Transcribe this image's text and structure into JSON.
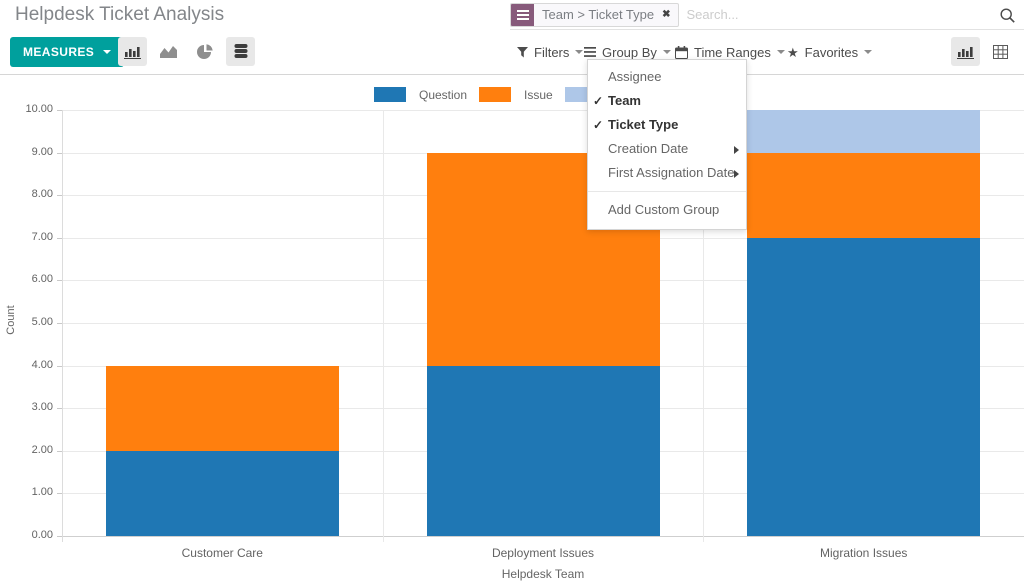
{
  "header": {
    "title": "Helpdesk Ticket Analysis",
    "search": {
      "facet_label": "Team > Ticket Type",
      "facet_remove": "✖",
      "placeholder": "Search...",
      "facet_color": "#875a7b"
    }
  },
  "toolbar": {
    "measures_label": "MEASURES",
    "filters_label": "Filters",
    "groupby_label": "Group By",
    "timeranges_label": "Time Ranges",
    "favorites_label": "Favorites"
  },
  "groupby_menu": {
    "items": [
      {
        "label": "Assignee",
        "checked": false,
        "has_submenu": false
      },
      {
        "label": "Team",
        "checked": true,
        "has_submenu": false
      },
      {
        "label": "Ticket Type",
        "checked": true,
        "has_submenu": false
      },
      {
        "label": "Creation Date",
        "checked": false,
        "has_submenu": true
      },
      {
        "label": "First Assignation Date",
        "checked": false,
        "has_submenu": true
      }
    ],
    "add_custom_label": "Add Custom Group"
  },
  "chart_data": {
    "type": "bar",
    "stacked": true,
    "title": "",
    "xlabel": "Helpdesk Team",
    "ylabel": "Count",
    "categories": [
      "Customer Care",
      "Deployment Issues",
      "Migration Issues"
    ],
    "series": [
      {
        "name": "Question",
        "color": "#1f77b4",
        "values": [
          2,
          4,
          7
        ]
      },
      {
        "name": "Issue",
        "color": "#ff7f0e",
        "values": [
          2,
          5,
          2
        ]
      },
      {
        "name": "",
        "color": "#aec7e8",
        "values": [
          0,
          0,
          1
        ]
      }
    ],
    "ylim": [
      0,
      10
    ],
    "yticks": [
      "0.00",
      "1.00",
      "2.00",
      "3.00",
      "4.00",
      "5.00",
      "6.00",
      "7.00",
      "8.00",
      "9.00",
      "10.00"
    ],
    "grid": true,
    "legend_position": "top"
  }
}
